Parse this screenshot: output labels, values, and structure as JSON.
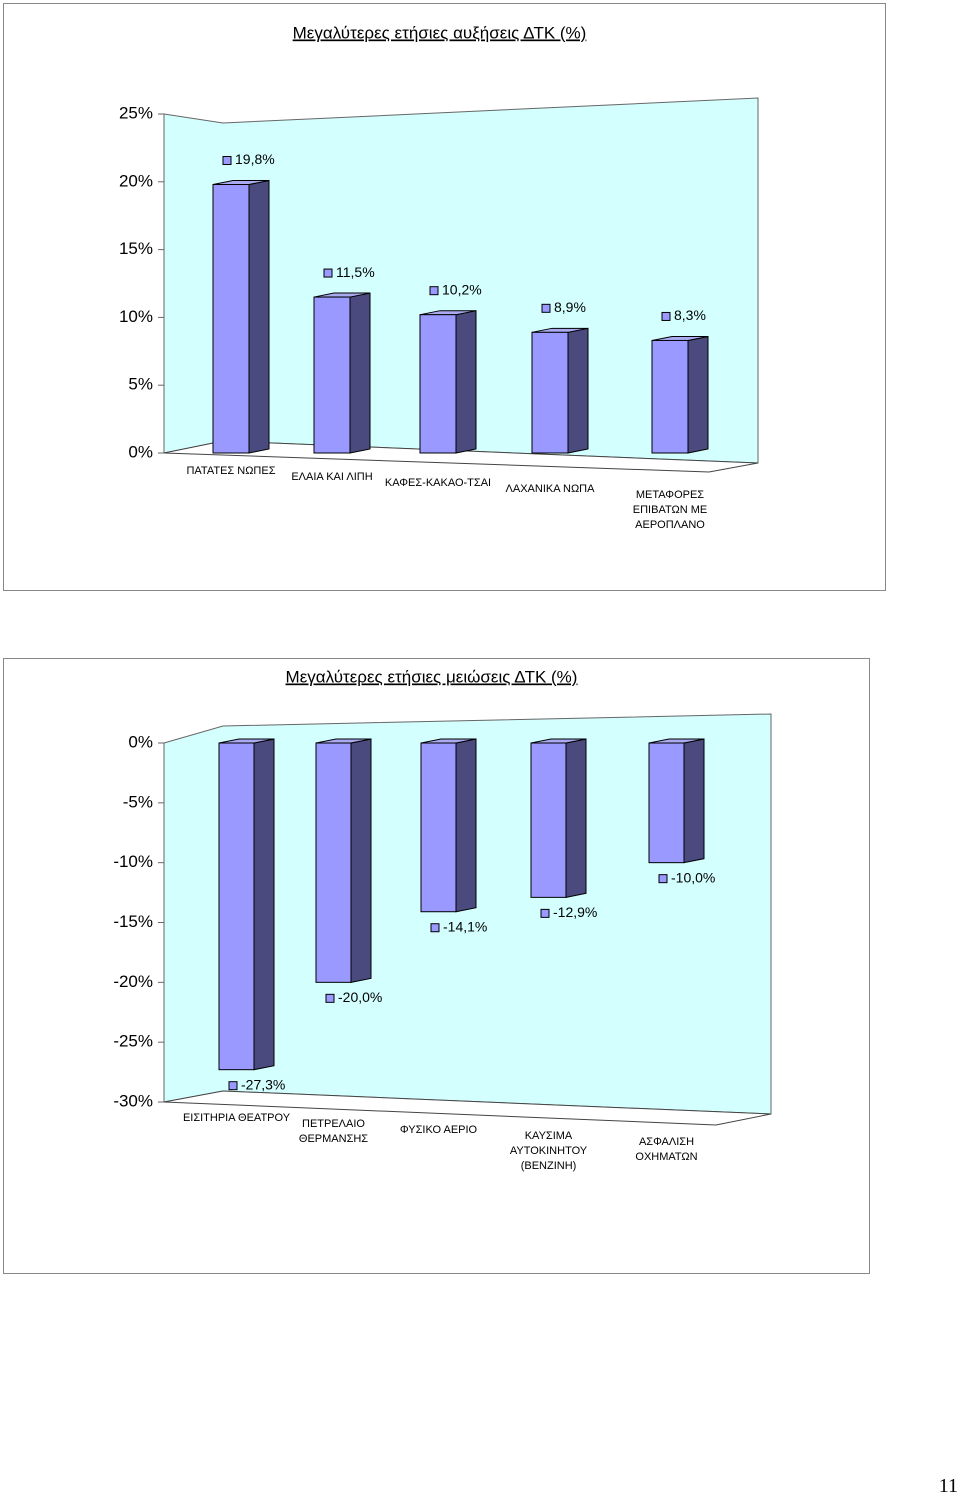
{
  "chart_data": [
    {
      "type": "bar3d",
      "title": "Μεγαλύτερες ετήσιες αυξήσεις ΔΤΚ (%)",
      "categories": [
        "ΠΑΤΑΤΕΣ ΝΩΠΕΣ",
        "ΕΛΑΙΑ ΚΑΙ ΛΙΠΗ",
        "ΚΑΦΕΣ-ΚΑΚΑΟ-ΤΣΑΙ",
        "ΛΑΧΑΝΙΚΑ ΝΩΠΑ",
        "ΜΕΤΑΦΟΡΕΣ ΕΠΙΒΑΤΩΝ ΜΕ ΑΕΡΟΠΛΑΝΟ"
      ],
      "values": [
        19.8,
        11.5,
        10.2,
        8.9,
        8.3
      ],
      "value_labels": [
        "19,8%",
        "11,5%",
        "10,2%",
        "8,9%",
        "8,3%"
      ],
      "color": "#9999ff",
      "ylim": [
        0,
        25
      ],
      "yticks": [
        {
          "value": 0,
          "label": "0%"
        },
        {
          "value": 5,
          "label": "5%"
        },
        {
          "value": 10,
          "label": "10%"
        },
        {
          "value": 15,
          "label": "15%"
        },
        {
          "value": 20,
          "label": "20%"
        },
        {
          "value": 25,
          "label": "25%"
        }
      ]
    },
    {
      "type": "bar3d",
      "title": "Μεγαλύτερες ετήσιες μειώσεις ΔΤΚ (%)",
      "categories": [
        "ΕΙΣΙΤΗΡΙΑ ΘΕΑΤΡΟΥ",
        "ΠΕΤΡΕΛΑΙΟ ΘΕΡΜΑΝΣΗΣ",
        "ΦΥΣΙΚΟ ΑΕΡΙΟ",
        "ΚΑΥΣΙΜΑ ΑΥΤΟΚΙΝΗΤΟΥ (ΒΕΝΖΙΝΗ)",
        "ΑΣΦΑΛΙΣΗ ΟΧΗΜΑΤΩΝ"
      ],
      "values": [
        -27.3,
        -20.0,
        -14.1,
        -12.9,
        -10.0
      ],
      "value_labels": [
        "-27,3%",
        "-20,0%",
        "-14,1%",
        "-12,9%",
        "-10,0%"
      ],
      "color": "#9999ff",
      "ylim": [
        -30,
        0
      ],
      "yticks": [
        {
          "value": 0,
          "label": "0%"
        },
        {
          "value": -5,
          "label": "-5%"
        },
        {
          "value": -10,
          "label": "-10%"
        },
        {
          "value": -15,
          "label": "-15%"
        },
        {
          "value": -20,
          "label": "-20%"
        },
        {
          "value": -25,
          "label": "-25%"
        },
        {
          "value": -30,
          "label": "-30%"
        }
      ]
    }
  ],
  "page_number": "11"
}
